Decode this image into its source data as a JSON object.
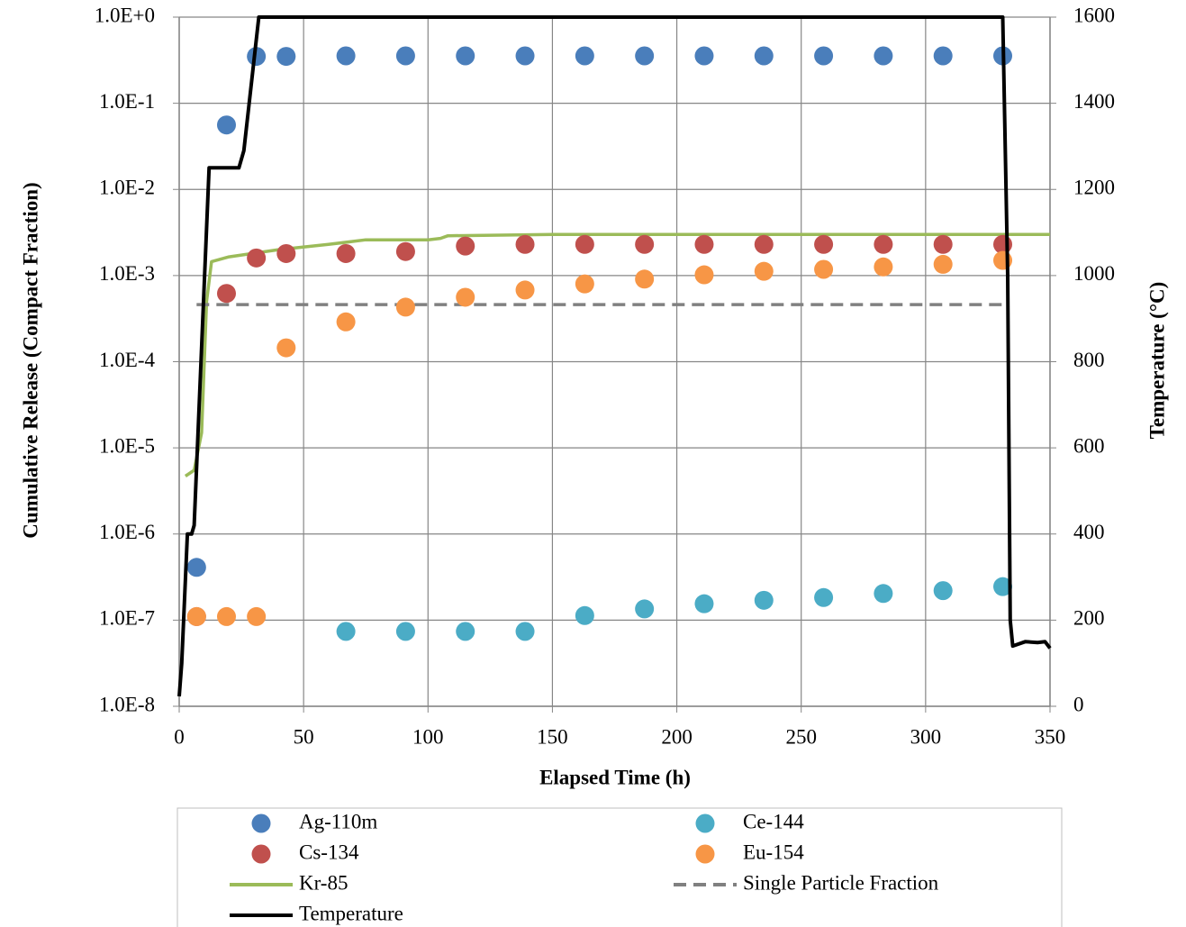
{
  "chart_data": {
    "type": "scatter",
    "x_label": "Elapsed Time (h)",
    "y_label": "Cumulative Release (Compact Fraction)",
    "y2_label": "Temperature (°C)",
    "xlim": [
      0,
      350
    ],
    "xticks": [
      0,
      50,
      100,
      150,
      200,
      250,
      300,
      350
    ],
    "ylim": [
      1e-08,
      1
    ],
    "yscale": "log",
    "yticks": [
      {
        "value": 1e-08,
        "label": "1.0E-8"
      },
      {
        "value": 1e-07,
        "label": "1.0E-7"
      },
      {
        "value": 1e-06,
        "label": "1.0E-6"
      },
      {
        "value": 1e-05,
        "label": "1.0E-5"
      },
      {
        "value": 0.0001,
        "label": "1.0E-4"
      },
      {
        "value": 0.001,
        "label": "1.0E-3"
      },
      {
        "value": 0.01,
        "label": "1.0E-2"
      },
      {
        "value": 0.1,
        "label": "1.0E-1"
      },
      {
        "value": 1,
        "label": "1.0E+0"
      }
    ],
    "y2lim": [
      0,
      1600
    ],
    "y2ticks": [
      0,
      200,
      400,
      600,
      800,
      1000,
      1200,
      1400,
      1600
    ],
    "grid": true,
    "series": [
      {
        "name": "Ag-110m",
        "type": "scatter",
        "color": "#4a7ebb",
        "x": [
          7,
          19,
          31,
          43,
          67,
          91,
          115,
          139,
          163,
          187,
          211,
          235,
          259,
          283,
          307,
          331
        ],
        "values": [
          4.1e-07,
          0.056,
          0.35,
          0.35,
          0.355,
          0.355,
          0.355,
          0.355,
          0.355,
          0.355,
          0.355,
          0.355,
          0.355,
          0.355,
          0.355,
          0.355
        ]
      },
      {
        "name": "Ce-144",
        "type": "scatter",
        "color": "#4bacc6",
        "x": [
          67,
          91,
          115,
          139,
          163,
          187,
          211,
          235,
          259,
          283,
          307,
          331
        ],
        "values": [
          7.4e-08,
          7.4e-08,
          7.4e-08,
          7.4e-08,
          1.13e-07,
          1.35e-07,
          1.55e-07,
          1.7e-07,
          1.83e-07,
          2.04e-07,
          2.2e-07,
          2.45e-07
        ]
      },
      {
        "name": "Cs-134",
        "type": "scatter",
        "color": "#c0504d",
        "x": [
          7,
          19,
          31,
          43,
          67,
          91,
          115,
          139,
          163,
          187,
          211,
          235,
          259,
          283,
          307,
          331
        ],
        "values": [
          1.1e-07,
          0.00062,
          0.0016,
          0.0018,
          0.0018,
          0.0019,
          0.0022,
          0.0023,
          0.0023,
          0.0023,
          0.0023,
          0.0023,
          0.0023,
          0.0023,
          0.0023,
          0.0023
        ]
      },
      {
        "name": "Eu-154",
        "type": "scatter",
        "color": "#f79646",
        "x": [
          7,
          19,
          31,
          43,
          67,
          91,
          115,
          139,
          163,
          187,
          211,
          235,
          259,
          283,
          307,
          331
        ],
        "values": [
          1.1e-07,
          1.1e-07,
          1.1e-07,
          0.000145,
          0.00029,
          0.00043,
          0.00056,
          0.00068,
          0.0008,
          0.00091,
          0.00102,
          0.00112,
          0.00118,
          0.00126,
          0.00135,
          0.0015
        ]
      },
      {
        "name": "Kr-85",
        "type": "line",
        "color": "#9bbb59",
        "x": [
          2.5,
          6,
          9,
          11,
          13,
          20,
          40,
          60,
          75,
          100,
          105,
          108,
          150,
          350
        ],
        "values": [
          4.7e-06,
          5.5e-06,
          1.5e-05,
          0.0005,
          0.00145,
          0.00165,
          0.002,
          0.0023,
          0.0026,
          0.0026,
          0.0027,
          0.0029,
          0.003,
          0.003
        ]
      },
      {
        "name": "Single Particle Fraction",
        "type": "line",
        "dashed": true,
        "color": "#808080",
        "x": [
          7,
          331
        ],
        "values": [
          0.00046,
          0.00046
        ]
      },
      {
        "name": "Temperature",
        "type": "line",
        "axis": "y2",
        "color": "#000000",
        "x": [
          0,
          1,
          3.3,
          5,
          6,
          12,
          24,
          26,
          32,
          331,
          333,
          334,
          335,
          340,
          345,
          348,
          350
        ],
        "values": [
          23,
          100,
          400,
          400,
          420,
          1250,
          1250,
          1290,
          1600,
          1600,
          1000,
          200,
          140,
          150,
          148,
          150,
          135
        ]
      }
    ]
  }
}
